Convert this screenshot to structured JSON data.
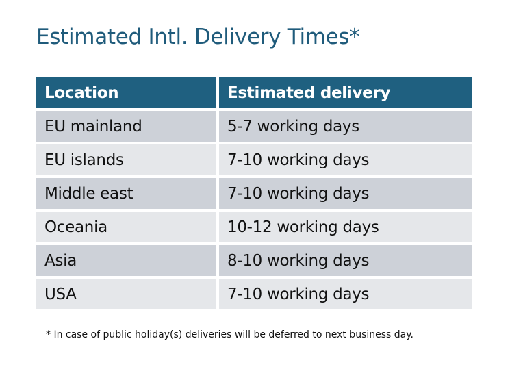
{
  "title": "Estimated Intl. Delivery Times*",
  "table": {
    "headers": [
      "Location",
      "Estimated delivery"
    ],
    "rows": [
      [
        "EU mainland",
        "5-7 working days"
      ],
      [
        "EU islands",
        "7-10 working days"
      ],
      [
        "Middle east",
        "7-10 working days"
      ],
      [
        "Oceania",
        "10-12 working days"
      ],
      [
        "Asia",
        "8-10 working days"
      ],
      [
        "USA",
        "7-10 working days"
      ]
    ]
  },
  "footnote": "* In case of public holiday(s) deliveries will be deferred to next business day.",
  "colors": {
    "title": "#1f5b7b",
    "header_bg": "#1f6080",
    "row_odd": "#cdd1d8",
    "row_even": "#e5e7ea"
  }
}
